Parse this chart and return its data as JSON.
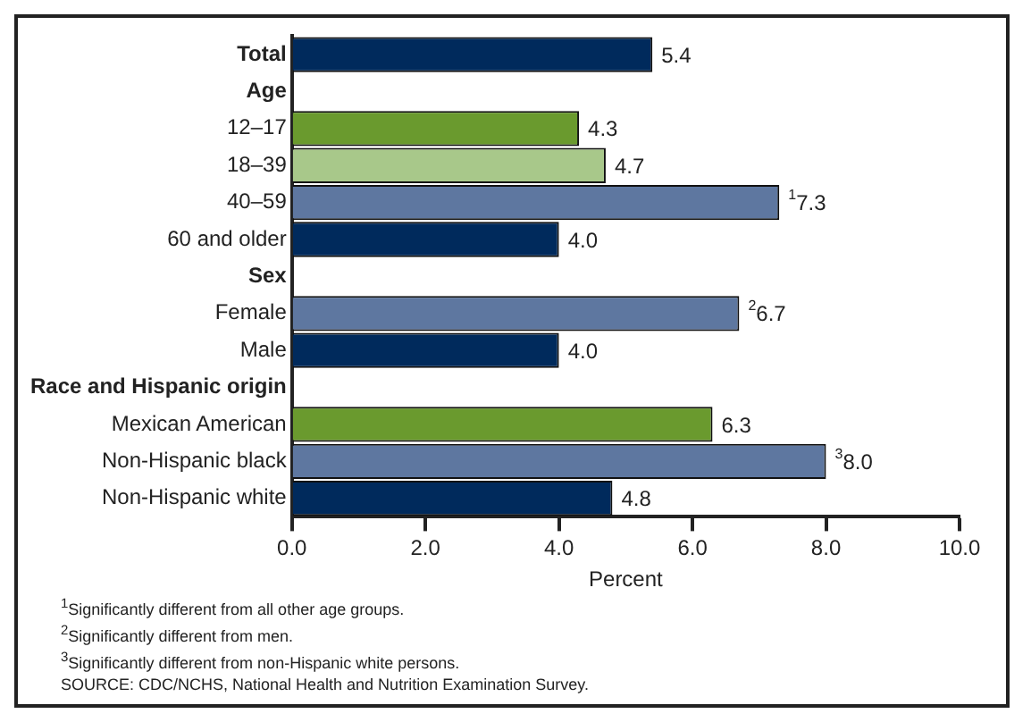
{
  "chart_data": {
    "type": "bar",
    "orientation": "horizontal",
    "xlabel": "Percent",
    "categories": [
      "Total",
      "Age",
      "12–17",
      "18–39",
      "40–59",
      "60 and older",
      "Sex",
      "Female",
      "Male",
      "Race and Hispanic origin",
      "Mexican American",
      "Non-Hispanic black",
      "Non-Hispanic white"
    ],
    "values": [
      5.4,
      null,
      4.3,
      4.7,
      7.3,
      4.0,
      null,
      6.7,
      4.0,
      null,
      6.3,
      8.0,
      4.8
    ],
    "colors": [
      "#002a5c",
      null,
      "#6a9a2e",
      "#a8c88a",
      "#5e77a0",
      "#002a5c",
      null,
      "#5e77a0",
      "#002a5c",
      null,
      "#6a9a2e",
      "#5e77a0",
      "#002a5c"
    ],
    "value_labels": [
      "5.4",
      null,
      "4.3",
      "4.7",
      "$^{1}$7.3",
      "4.0",
      null,
      "$^{2}$6.7",
      "4.0",
      null,
      "6.3",
      "$^{3}$8.0",
      "4.8"
    ],
    "xlim": [
      0,
      10
    ],
    "xticks": [
      {
        "value": 0,
        "label": "0.0"
      },
      {
        "value": 2,
        "label": "2.0"
      },
      {
        "value": 4,
        "label": "4.0"
      },
      {
        "value": 6,
        "label": "6.0"
      },
      {
        "value": 8,
        "label": "8.0"
      },
      {
        "value": 10,
        "label": "10.0"
      }
    ],
    "grid": false,
    "annotations": [
      "$^{1}$Significantly different from all other age groups.",
      "$^{2}$Significantly different from men.",
      "$^{3}$Significantly different from non-Hispanic white persons.",
      "SOURCE: CDC/NCHS, National Health and Nutrition Examination Survey."
    ]
  }
}
